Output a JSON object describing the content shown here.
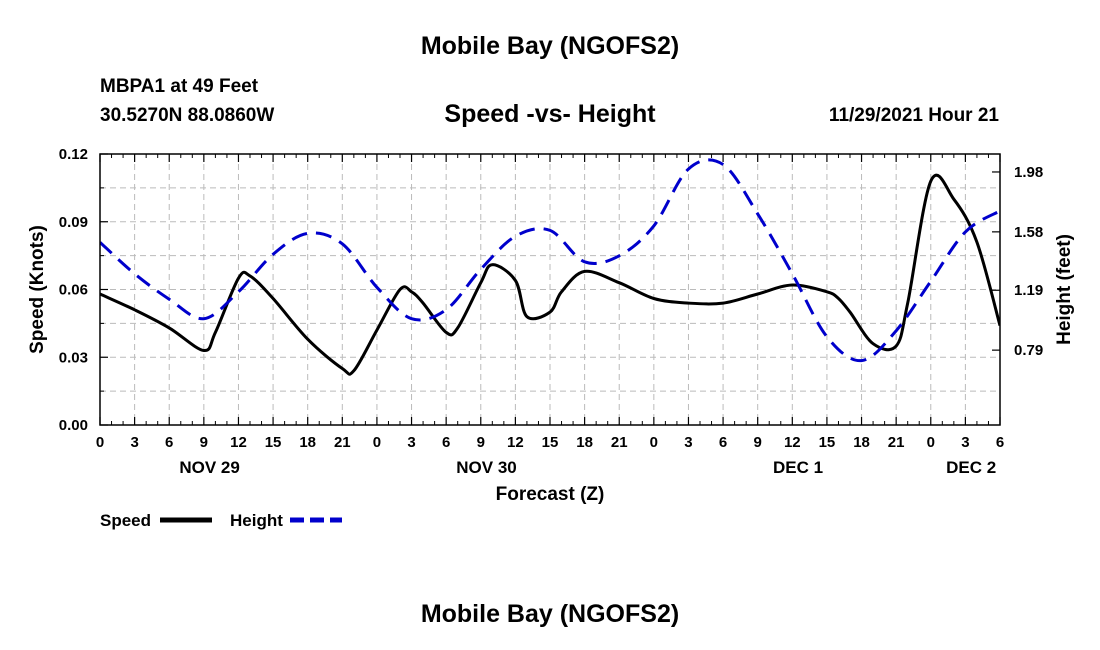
{
  "page": {
    "title_top": "Mobile Bay (NGOFS2)",
    "station_line": "MBPA1 at 49 Feet",
    "coords_line": "30.5270N  88.0860W",
    "timestamp": "11/29/2021 Hour 21",
    "title_bottom": "Mobile Bay (NGOFS2)"
  },
  "colors": {
    "speed": "#000000",
    "height": "#0000cc",
    "grid": "#bbbbbb"
  },
  "chart_data": {
    "type": "line",
    "title": "Speed -vs- Height",
    "xlabel": "Forecast (Z)",
    "ylabel": "Speed (Knots)",
    "y2label": "Height (feet)",
    "xlim": [
      0,
      78
    ],
    "ylim": [
      0,
      0.12
    ],
    "y2lim": [
      0.29,
      2.1
    ],
    "xticks": [
      0,
      3,
      6,
      9,
      12,
      15,
      18,
      21,
      24,
      27,
      30,
      33,
      36,
      39,
      42,
      45,
      48,
      51,
      54,
      57,
      60,
      63,
      66,
      69,
      72,
      75,
      78
    ],
    "xtick_labels": [
      "0",
      "3",
      "6",
      "9",
      "12",
      "15",
      "18",
      "21",
      "0",
      "3",
      "6",
      "9",
      "12",
      "15",
      "18",
      "21",
      "0",
      "3",
      "6",
      "9",
      "12",
      "15",
      "18",
      "21",
      "0",
      "3",
      "6"
    ],
    "day_labels": [
      {
        "x": 9.5,
        "label": "NOV 29"
      },
      {
        "x": 33.5,
        "label": "NOV 30"
      },
      {
        "x": 60.5,
        "label": "DEC 1"
      },
      {
        "x": 75.5,
        "label": "DEC 2"
      }
    ],
    "yticks": [
      0.0,
      0.03,
      0.06,
      0.09,
      0.12
    ],
    "ytick_labels": [
      "0.00",
      "0.03",
      "0.06",
      "0.09",
      "0.12"
    ],
    "y2ticks": [
      0.79,
      1.19,
      1.58,
      1.98
    ],
    "y2tick_labels": [
      "0.79",
      "1.19",
      "1.58",
      "1.98"
    ],
    "series": [
      {
        "name": "Speed",
        "axis": "left",
        "style": "solid",
        "x": [
          0,
          3,
          6,
          9,
          10,
          12,
          13,
          15,
          18,
          21,
          22,
          24,
          26,
          27,
          28,
          30,
          31,
          33,
          34,
          36,
          37,
          39,
          40,
          42,
          45,
          48,
          51,
          54,
          57,
          60,
          63,
          64,
          65,
          67,
          69,
          70,
          72,
          74,
          76,
          78
        ],
        "values": [
          0.058,
          0.051,
          0.043,
          0.033,
          0.041,
          0.065,
          0.066,
          0.056,
          0.038,
          0.025,
          0.024,
          0.042,
          0.06,
          0.059,
          0.054,
          0.041,
          0.043,
          0.063,
          0.071,
          0.064,
          0.048,
          0.05,
          0.059,
          0.068,
          0.063,
          0.056,
          0.054,
          0.054,
          0.058,
          0.062,
          0.059,
          0.056,
          0.05,
          0.036,
          0.035,
          0.054,
          0.108,
          0.1,
          0.081,
          0.044
        ]
      },
      {
        "name": "Height",
        "axis": "right",
        "style": "dashed",
        "x": [
          0,
          3,
          6,
          9,
          12,
          15,
          18,
          21,
          24,
          27,
          30,
          33,
          36,
          39,
          42,
          45,
          48,
          51,
          54,
          57,
          60,
          63,
          66,
          69,
          72,
          75,
          78
        ],
        "values": [
          1.51,
          1.3,
          1.13,
          1.0,
          1.18,
          1.43,
          1.57,
          1.5,
          1.21,
          1.0,
          1.06,
          1.33,
          1.55,
          1.59,
          1.38,
          1.42,
          1.62,
          2.0,
          2.03,
          1.7,
          1.3,
          0.88,
          0.72,
          0.92,
          1.25,
          1.58,
          1.72
        ]
      }
    ],
    "legend": [
      {
        "label": "Speed",
        "series": "Speed"
      },
      {
        "label": "Height",
        "series": "Height"
      }
    ],
    "grid": true,
    "legend_position": "bottom-left"
  }
}
